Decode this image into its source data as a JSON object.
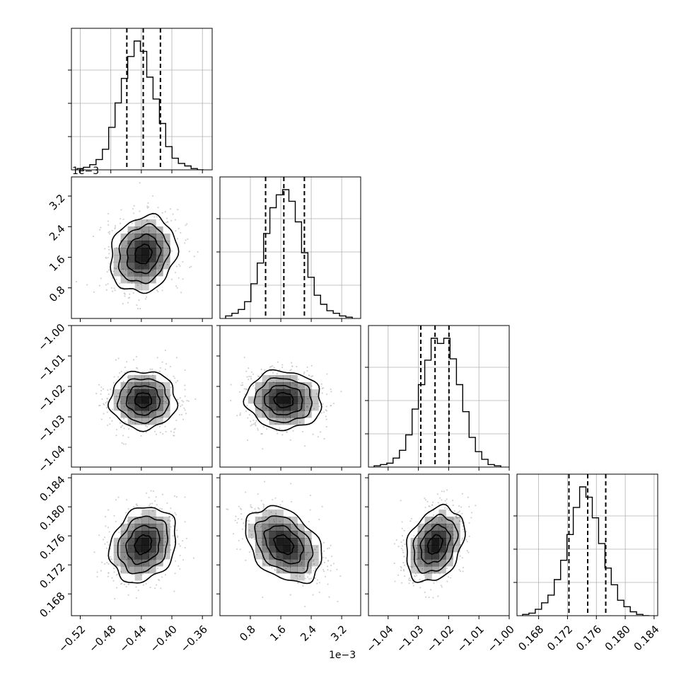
{
  "chart_data": {
    "type": "corner",
    "parameters": [
      {
        "ticks": [
          -0.52,
          -0.48,
          -0.44,
          -0.4,
          -0.36
        ],
        "tick_labels": [
          "−0.52",
          "−0.48",
          "−0.44",
          "−0.40",
          "−0.36"
        ],
        "range": [
          -0.5316,
          -0.3472
        ],
        "quantiles": [
          -0.459,
          -0.4375,
          -0.415
        ],
        "peak": -0.4375,
        "sigma": 0.0218,
        "hist": [
          1,
          2,
          4,
          8,
          16,
          33,
          52,
          71,
          88,
          100,
          92,
          72,
          55,
          36,
          18,
          9,
          5,
          3,
          1,
          0
        ]
      },
      {
        "ticks": [
          0.8,
          1.6,
          2.4,
          3.2
        ],
        "tick_labels": [
          "0.8",
          "1.6",
          "2.4",
          "3.2"
        ],
        "offset_label": "1e−3",
        "range": [
          0.0,
          3.7
        ],
        "quantiles": [
          1.2,
          1.68,
          2.22
        ],
        "peak": 1.68,
        "sigma": 0.5,
        "hist": [
          2,
          4,
          7,
          13,
          27,
          43,
          66,
          86,
          96,
          100,
          91,
          75,
          51,
          32,
          18,
          11,
          6,
          4,
          2,
          1
        ]
      },
      {
        "ticks": [
          -1.04,
          -1.03,
          -1.02,
          -1.01,
          -1.0
        ],
        "tick_labels": [
          "−1.04",
          "−1.03",
          "−1.02",
          "−1.01",
          "−1.00"
        ],
        "range": [
          -1.0465,
          -1.0
        ],
        "quantiles": [
          -1.0292,
          -1.0245,
          -1.0199
        ],
        "peak": -1.0245,
        "sigma": 0.0048,
        "hist": [
          1,
          2,
          3,
          7,
          13,
          25,
          45,
          64,
          83,
          100,
          96,
          100,
          84,
          64,
          43,
          23,
          12,
          6,
          2,
          1
        ]
      },
      {
        "ticks": [
          0.168,
          0.172,
          0.176,
          0.18,
          0.184
        ],
        "tick_labels": [
          "0.168",
          "0.172",
          "0.176",
          "0.180",
          "0.184"
        ],
        "range": [
          0.165,
          0.1845
        ],
        "quantiles": [
          0.1722,
          0.1748,
          0.1773
        ],
        "peak": 0.1748,
        "sigma": 0.0026,
        "hist": [
          1,
          2,
          5,
          10,
          16,
          28,
          43,
          63,
          84,
          100,
          92,
          76,
          56,
          37,
          24,
          12,
          7,
          3,
          1,
          0
        ]
      }
    ],
    "correlations": [
      {
        "row": 1,
        "col": 0,
        "rho": 0.15
      },
      {
        "row": 2,
        "col": 0,
        "rho": 0.0
      },
      {
        "row": 2,
        "col": 1,
        "rho": -0.05
      },
      {
        "row": 3,
        "col": 0,
        "rho": 0.2
      },
      {
        "row": 3,
        "col": 1,
        "rho": -0.35
      },
      {
        "row": 3,
        "col": 2,
        "rho": 0.3
      }
    ],
    "quantile_style": "dashed",
    "grid": true,
    "colors": {
      "line": "#000000",
      "points": "#bdbdbd",
      "grid": "#b0b0b0",
      "density": "#000000"
    }
  }
}
